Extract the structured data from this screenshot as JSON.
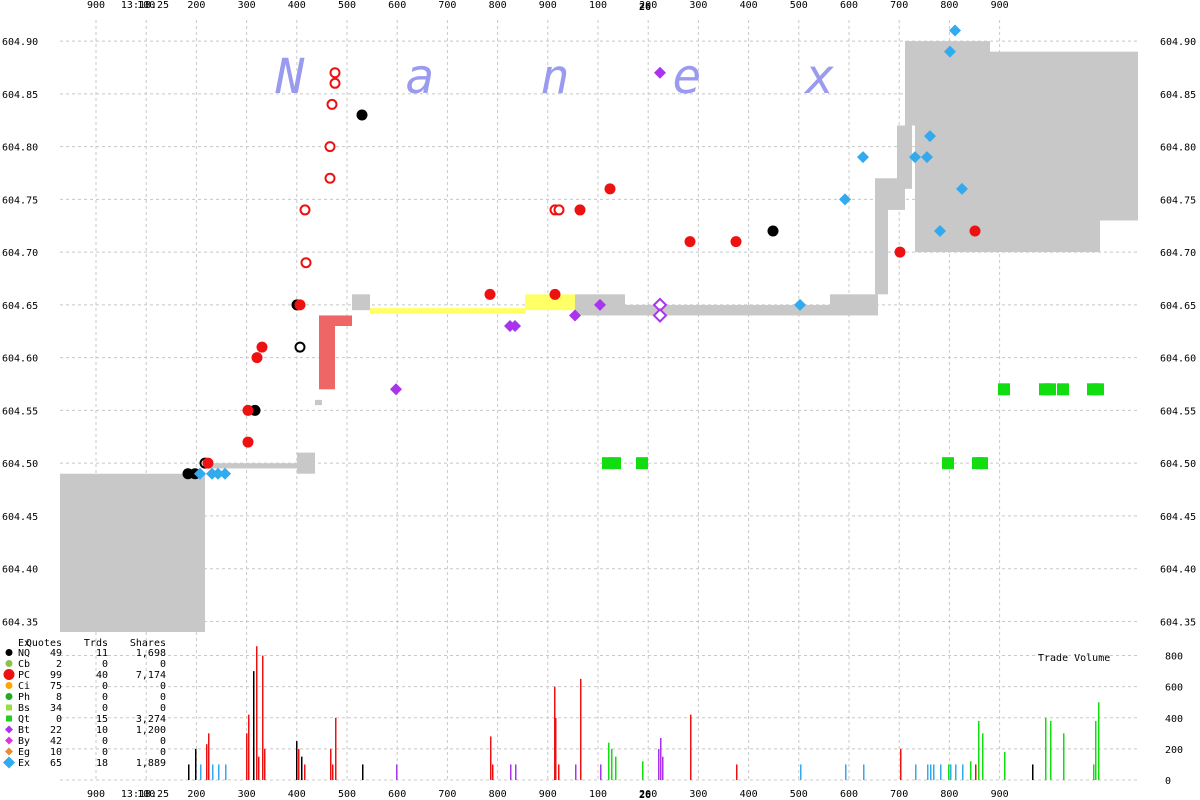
{
  "watermark": [
    "N",
    "a",
    "n",
    "e",
    "x"
  ],
  "top_axis": {
    "time_label": "13:18:25",
    "minute_label": "26",
    "ticks": [
      "900",
      "100",
      "200",
      "300",
      "400",
      "500",
      "600",
      "700",
      "800",
      "900",
      "100",
      "200",
      "300",
      "400",
      "500",
      "600",
      "700",
      "800",
      "900"
    ]
  },
  "bottom_axis": {
    "time_label": "13:18:25",
    "minute_label": "26",
    "ticks": [
      "900",
      "100",
      "200",
      "300",
      "400",
      "500",
      "600",
      "700",
      "800",
      "900",
      "100",
      "200",
      "300",
      "400",
      "500",
      "600",
      "700",
      "800",
      "900"
    ]
  },
  "price_axis": [
    "604.90",
    "604.85",
    "604.80",
    "604.75",
    "604.70",
    "604.65",
    "604.60",
    "604.55",
    "604.50",
    "604.45",
    "604.40",
    "604.35"
  ],
  "exchange_table": {
    "headers": [
      "Ex",
      "Quotes",
      "Trds",
      "Shares"
    ],
    "rows": [
      {
        "ex": "NQ",
        "quotes": "49",
        "trds": "11",
        "shares": "1,698",
        "color": "#000000",
        "shape": "circle"
      },
      {
        "ex": "Cb",
        "quotes": "2",
        "trds": "0",
        "shares": "0",
        "color": "#8bc34a",
        "shape": "circle"
      },
      {
        "ex": "PC",
        "quotes": "99",
        "trds": "40",
        "shares": "7,174",
        "color": "#ee1111",
        "shape": "circle-big"
      },
      {
        "ex": "Ci",
        "quotes": "75",
        "trds": "0",
        "shares": "0",
        "color": "#ffa500",
        "shape": "circle"
      },
      {
        "ex": "Ph",
        "quotes": "8",
        "trds": "0",
        "shares": "0",
        "color": "#22aa22",
        "shape": "circle"
      },
      {
        "ex": "Bs",
        "quotes": "34",
        "trds": "0",
        "shares": "0",
        "color": "#99dd44",
        "shape": "square"
      },
      {
        "ex": "Qt",
        "quotes": "0",
        "trds": "15",
        "shares": "3,274",
        "color": "#22cc22",
        "shape": "square"
      },
      {
        "ex": "Bt",
        "quotes": "22",
        "trds": "10",
        "shares": "1,200",
        "color": "#aa33ee",
        "shape": "diamond"
      },
      {
        "ex": "By",
        "quotes": "42",
        "trds": "0",
        "shares": "0",
        "color": "#dd33dd",
        "shape": "diamond"
      },
      {
        "ex": "Eg",
        "quotes": "10",
        "trds": "0",
        "shares": "0",
        "color": "#ee8833",
        "shape": "diamond"
      },
      {
        "ex": "Ex",
        "quotes": "65",
        "trds": "18",
        "shares": "1,889",
        "color": "#33aaee",
        "shape": "diamond-big"
      }
    ]
  },
  "volume_panel": {
    "title": "Trade Volume",
    "ticks": [
      "800",
      "600",
      "400",
      "200",
      "0"
    ]
  },
  "chart_data": {
    "type": "scatter",
    "ylim": [
      604.34,
      604.92
    ],
    "volume_ylim": [
      0,
      900
    ],
    "x_axis_labels": [
      "13:18:25",
      "26"
    ],
    "nbbo_bands": [
      {
        "x0": 0,
        "x1": 145,
        "y0": 604.34,
        "y1": 604.49,
        "color": "#c8c8c8"
      },
      {
        "x0": 145,
        "x1": 237,
        "y0": 604.495,
        "y1": 604.5,
        "color": "#c8c8c8"
      },
      {
        "x0": 237,
        "x1": 255,
        "y0": 604.49,
        "y1": 604.51,
        "color": "#c8c8c8"
      },
      {
        "x0": 255,
        "x1": 262,
        "y0": 604.555,
        "y1": 604.56,
        "color": "#c8c8c8"
      },
      {
        "x0": 259,
        "x1": 275,
        "y0": 604.57,
        "y1": 604.64,
        "color": "#ee6666"
      },
      {
        "x0": 275,
        "x1": 292,
        "y0": 604.63,
        "y1": 604.64,
        "color": "#ee6666"
      },
      {
        "x0": 292,
        "x1": 310,
        "y0": 604.645,
        "y1": 604.66,
        "color": "#c8c8c8"
      },
      {
        "x0": 310,
        "x1": 465,
        "y0": 604.642,
        "y1": 604.647,
        "color": "#ffff66"
      },
      {
        "x0": 465,
        "x1": 515,
        "y0": 604.645,
        "y1": 604.66,
        "color": "#ffff66"
      },
      {
        "x0": 515,
        "x1": 565,
        "y0": 604.64,
        "y1": 604.66,
        "color": "#c8c8c8"
      },
      {
        "x0": 565,
        "x1": 770,
        "y0": 604.64,
        "y1": 604.65,
        "color": "#c8c8c8"
      },
      {
        "x0": 770,
        "x1": 818,
        "y0": 604.64,
        "y1": 604.66,
        "color": "#c8c8c8"
      },
      {
        "x0": 815,
        "x1": 828,
        "y0": 604.66,
        "y1": 604.77,
        "color": "#c8c8c8"
      },
      {
        "x0": 828,
        "x1": 845,
        "y0": 604.74,
        "y1": 604.77,
        "color": "#c8c8c8"
      },
      {
        "x0": 837,
        "x1": 852,
        "y0": 604.76,
        "y1": 604.82,
        "color": "#c8c8c8"
      },
      {
        "x0": 845,
        "x1": 930,
        "y0": 604.82,
        "y1": 604.9,
        "color": "#c8c8c8"
      },
      {
        "x0": 855,
        "x1": 1040,
        "y0": 604.7,
        "y1": 604.85,
        "color": "#c8c8c8"
      },
      {
        "x0": 930,
        "x1": 1078,
        "y0": 604.73,
        "y1": 604.89,
        "color": "#c8c8c8"
      }
    ],
    "series": [
      {
        "name": "NQ",
        "color": "#000000",
        "marker": "circle",
        "points": [
          {
            "x": 128,
            "y": 604.49,
            "f": 1
          },
          {
            "x": 135,
            "y": 604.49,
            "f": 1
          },
          {
            "x": 145,
            "y": 604.5,
            "f": 0
          },
          {
            "x": 195,
            "y": 604.55,
            "f": 1
          },
          {
            "x": 237,
            "y": 604.65,
            "f": 1
          },
          {
            "x": 240,
            "y": 604.61,
            "f": 0
          },
          {
            "x": 302,
            "y": 604.83,
            "f": 1
          },
          {
            "x": 713,
            "y": 604.72,
            "f": 1
          }
        ]
      },
      {
        "name": "PC",
        "color": "#ee1111",
        "marker": "circle",
        "points": [
          {
            "x": 148,
            "y": 604.5,
            "f": 1
          },
          {
            "x": 188,
            "y": 604.52,
            "f": 1
          },
          {
            "x": 188,
            "y": 604.55,
            "f": 1
          },
          {
            "x": 197,
            "y": 604.6,
            "f": 1
          },
          {
            "x": 202,
            "y": 604.61,
            "f": 1
          },
          {
            "x": 240,
            "y": 604.65,
            "f": 1
          },
          {
            "x": 246,
            "y": 604.69,
            "f": 0
          },
          {
            "x": 245,
            "y": 604.74,
            "f": 0
          },
          {
            "x": 270,
            "y": 604.77,
            "f": 0
          },
          {
            "x": 270,
            "y": 604.8,
            "f": 0
          },
          {
            "x": 272,
            "y": 604.84,
            "f": 0
          },
          {
            "x": 275,
            "y": 604.86,
            "f": 0
          },
          {
            "x": 275,
            "y": 604.87,
            "f": 0
          },
          {
            "x": 430,
            "y": 604.66,
            "f": 1
          },
          {
            "x": 495,
            "y": 604.66,
            "f": 1
          },
          {
            "x": 495,
            "y": 604.74,
            "f": 0
          },
          {
            "x": 499,
            "y": 604.74,
            "f": 0
          },
          {
            "x": 520,
            "y": 604.74,
            "f": 1
          },
          {
            "x": 550,
            "y": 604.76,
            "f": 1
          },
          {
            "x": 630,
            "y": 604.71,
            "f": 1
          },
          {
            "x": 676,
            "y": 604.71,
            "f": 1
          },
          {
            "x": 840,
            "y": 604.7,
            "f": 1
          },
          {
            "x": 915,
            "y": 604.72,
            "f": 1
          }
        ]
      },
      {
        "name": "Bt",
        "color": "#aa33ee",
        "marker": "diamond",
        "points": [
          {
            "x": 336,
            "y": 604.57,
            "f": 1
          },
          {
            "x": 450,
            "y": 604.63,
            "f": 1
          },
          {
            "x": 455,
            "y": 604.63,
            "f": 1
          },
          {
            "x": 515,
            "y": 604.64,
            "f": 1
          },
          {
            "x": 540,
            "y": 604.65,
            "f": 1
          },
          {
            "x": 600,
            "y": 604.65,
            "f": 0
          },
          {
            "x": 600,
            "y": 604.64,
            "f": 0
          },
          {
            "x": 600,
            "y": 604.87,
            "f": 1
          }
        ]
      },
      {
        "name": "Ex",
        "color": "#33aaee",
        "marker": "diamond",
        "points": [
          {
            "x": 140,
            "y": 604.49,
            "f": 1
          },
          {
            "x": 152,
            "y": 604.49,
            "f": 1
          },
          {
            "x": 158,
            "y": 604.49,
            "f": 1
          },
          {
            "x": 165,
            "y": 604.49,
            "f": 1
          },
          {
            "x": 740,
            "y": 604.65,
            "f": 1
          },
          {
            "x": 785,
            "y": 604.75,
            "f": 1
          },
          {
            "x": 803,
            "y": 604.79,
            "f": 1
          },
          {
            "x": 855,
            "y": 604.79,
            "f": 1
          },
          {
            "x": 867,
            "y": 604.79,
            "f": 1
          },
          {
            "x": 870,
            "y": 604.81,
            "f": 1
          },
          {
            "x": 880,
            "y": 604.72,
            "f": 1
          },
          {
            "x": 890,
            "y": 604.89,
            "f": 1
          },
          {
            "x": 895,
            "y": 604.91,
            "f": 1
          },
          {
            "x": 902,
            "y": 604.76,
            "f": 1
          }
        ]
      },
      {
        "name": "Qt",
        "color": "#11dd11",
        "marker": "square",
        "points": [
          {
            "x": 548,
            "y": 604.5
          },
          {
            "x": 555,
            "y": 604.5
          },
          {
            "x": 582,
            "y": 604.5
          },
          {
            "x": 888,
            "y": 604.5
          },
          {
            "x": 918,
            "y": 604.5
          },
          {
            "x": 922,
            "y": 604.5
          },
          {
            "x": 944,
            "y": 604.57
          },
          {
            "x": 985,
            "y": 604.57
          },
          {
            "x": 990,
            "y": 604.57
          },
          {
            "x": 1003,
            "y": 604.57
          },
          {
            "x": 1033,
            "y": 604.57
          },
          {
            "x": 1038,
            "y": 604.57
          }
        ]
      }
    ],
    "volume_bars": [
      {
        "x": 128,
        "v": 100,
        "c": "#000000"
      },
      {
        "x": 135,
        "v": 200,
        "c": "#000000"
      },
      {
        "x": 140,
        "v": 100,
        "c": "#33aaee"
      },
      {
        "x": 146,
        "v": 230,
        "c": "#ee1111"
      },
      {
        "x": 148,
        "v": 300,
        "c": "#ee1111"
      },
      {
        "x": 152,
        "v": 100,
        "c": "#33aaee"
      },
      {
        "x": 158,
        "v": 100,
        "c": "#33aaee"
      },
      {
        "x": 165,
        "v": 100,
        "c": "#33aaee"
      },
      {
        "x": 186,
        "v": 300,
        "c": "#ee1111"
      },
      {
        "x": 188,
        "v": 420,
        "c": "#ee1111"
      },
      {
        "x": 193,
        "v": 700,
        "c": "#000000"
      },
      {
        "x": 196,
        "v": 860,
        "c": "#ee1111"
      },
      {
        "x": 198,
        "v": 150,
        "c": "#ee1111"
      },
      {
        "x": 202,
        "v": 800,
        "c": "#ee1111"
      },
      {
        "x": 204,
        "v": 200,
        "c": "#ee1111"
      },
      {
        "x": 236,
        "v": 250,
        "c": "#000000"
      },
      {
        "x": 238,
        "v": 200,
        "c": "#ee1111"
      },
      {
        "x": 241,
        "v": 150,
        "c": "#000000"
      },
      {
        "x": 244,
        "v": 100,
        "c": "#ee1111"
      },
      {
        "x": 270,
        "v": 200,
        "c": "#ee1111"
      },
      {
        "x": 272,
        "v": 100,
        "c": "#ee1111"
      },
      {
        "x": 275,
        "v": 400,
        "c": "#ee1111"
      },
      {
        "x": 302,
        "v": 100,
        "c": "#000000"
      },
      {
        "x": 336,
        "v": 100,
        "c": "#aa33ee"
      },
      {
        "x": 430,
        "v": 280,
        "c": "#ee1111"
      },
      {
        "x": 432,
        "v": 100,
        "c": "#ee1111"
      },
      {
        "x": 450,
        "v": 100,
        "c": "#aa33ee"
      },
      {
        "x": 455,
        "v": 100,
        "c": "#aa33ee"
      },
      {
        "x": 494,
        "v": 600,
        "c": "#ee1111"
      },
      {
        "x": 495,
        "v": 400,
        "c": "#ee1111"
      },
      {
        "x": 498,
        "v": 100,
        "c": "#ee1111"
      },
      {
        "x": 515,
        "v": 100,
        "c": "#aa33ee"
      },
      {
        "x": 520,
        "v": 650,
        "c": "#ee1111"
      },
      {
        "x": 540,
        "v": 100,
        "c": "#aa33ee"
      },
      {
        "x": 548,
        "v": 240,
        "c": "#11dd11"
      },
      {
        "x": 551,
        "v": 200,
        "c": "#11dd11"
      },
      {
        "x": 555,
        "v": 150,
        "c": "#11dd11"
      },
      {
        "x": 582,
        "v": 120,
        "c": "#11dd11"
      },
      {
        "x": 598,
        "v": 200,
        "c": "#aa33ee"
      },
      {
        "x": 600,
        "v": 270,
        "c": "#aa33ee"
      },
      {
        "x": 602,
        "v": 150,
        "c": "#aa33ee"
      },
      {
        "x": 630,
        "v": 420,
        "c": "#ee1111"
      },
      {
        "x": 676,
        "v": 100,
        "c": "#ee1111"
      },
      {
        "x": 740,
        "v": 100,
        "c": "#33aaee"
      },
      {
        "x": 785,
        "v": 100,
        "c": "#33aaee"
      },
      {
        "x": 803,
        "v": 100,
        "c": "#33aaee"
      },
      {
        "x": 840,
        "v": 200,
        "c": "#ee1111"
      },
      {
        "x": 855,
        "v": 100,
        "c": "#33aaee"
      },
      {
        "x": 867,
        "v": 100,
        "c": "#33aaee"
      },
      {
        "x": 870,
        "v": 100,
        "c": "#33aaee"
      },
      {
        "x": 873,
        "v": 100,
        "c": "#33aaee"
      },
      {
        "x": 880,
        "v": 100,
        "c": "#33aaee"
      },
      {
        "x": 888,
        "v": 100,
        "c": "#11dd11"
      },
      {
        "x": 890,
        "v": 100,
        "c": "#33aaee"
      },
      {
        "x": 895,
        "v": 100,
        "c": "#33aaee"
      },
      {
        "x": 902,
        "v": 100,
        "c": "#33aaee"
      },
      {
        "x": 910,
        "v": 120,
        "c": "#11dd11"
      },
      {
        "x": 915,
        "v": 100,
        "c": "#ee1111"
      },
      {
        "x": 918,
        "v": 380,
        "c": "#11dd11"
      },
      {
        "x": 922,
        "v": 300,
        "c": "#11dd11"
      },
      {
        "x": 944,
        "v": 180,
        "c": "#11dd11"
      },
      {
        "x": 972,
        "v": 100,
        "c": "#000000"
      },
      {
        "x": 985,
        "v": 400,
        "c": "#11dd11"
      },
      {
        "x": 990,
        "v": 380,
        "c": "#11dd11"
      },
      {
        "x": 1003,
        "v": 300,
        "c": "#11dd11"
      },
      {
        "x": 1033,
        "v": 100,
        "c": "#11dd11"
      },
      {
        "x": 1035,
        "v": 380,
        "c": "#11dd11"
      },
      {
        "x": 1038,
        "v": 500,
        "c": "#11dd11"
      }
    ]
  }
}
